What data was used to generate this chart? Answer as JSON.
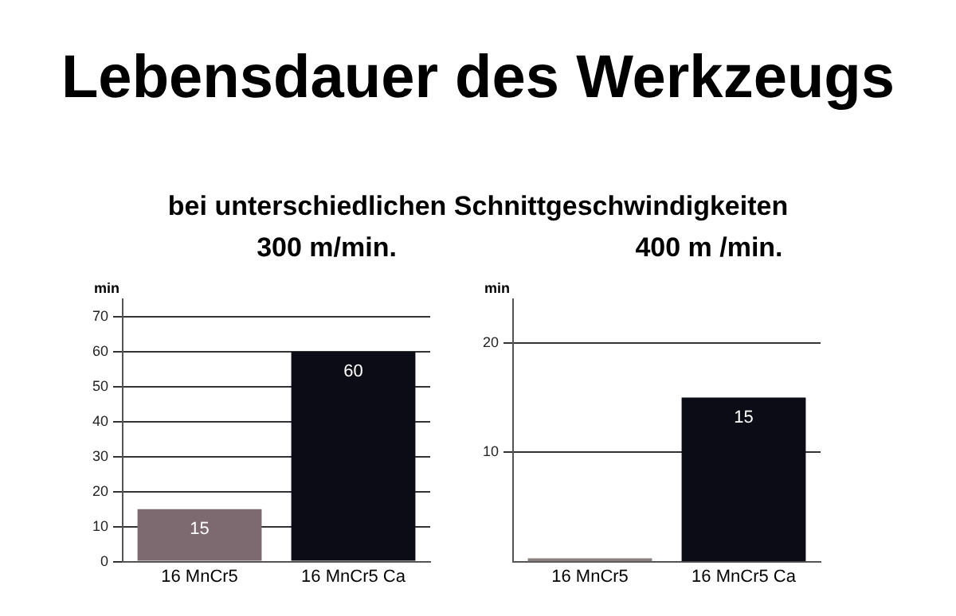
{
  "chart_data": [
    {
      "type": "bar",
      "title": "Lebensdauer des Werkzeugs",
      "subtitle": "bei unterschiedlichen Schnittgeschwindigkeiten",
      "annotations": [
        "300 m/min."
      ],
      "ylabel": "min",
      "categories": [
        "16 MnCr5",
        "16 MnCr5 Ca"
      ],
      "values": [
        15,
        60
      ],
      "colors": [
        "#7d6a70",
        "#0c0c16"
      ],
      "data_labels": true,
      "ylim": [
        0,
        75
      ],
      "yticks": [
        0,
        10,
        20,
        30,
        40,
        50,
        60,
        70
      ],
      "grid": "y",
      "legend": false
    },
    {
      "type": "bar",
      "title": "400 m /min.",
      "ylabel": "min",
      "categories": [
        "16 MnCr5",
        "16 MnCr5 Ca"
      ],
      "values": [
        0.3,
        15
      ],
      "colors": [
        "#8a8080",
        "#0c0c16"
      ],
      "value_labels": [
        null,
        "15"
      ],
      "ylim": [
        0,
        24
      ],
      "yticks": [
        10,
        20
      ],
      "grid": "y",
      "legend": false
    }
  ]
}
